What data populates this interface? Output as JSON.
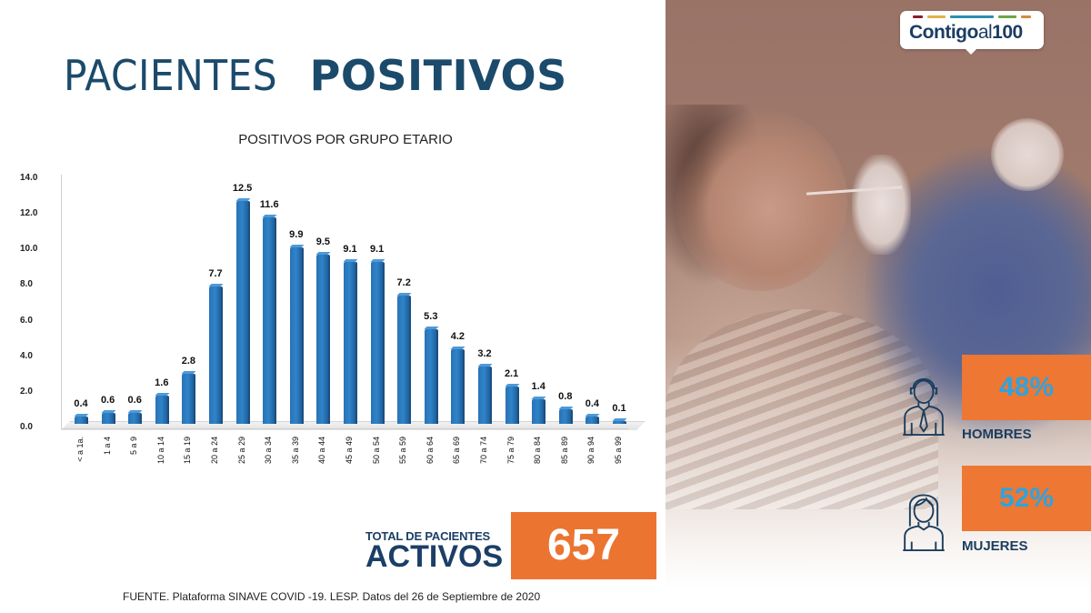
{
  "header": {
    "title_light": "PACIENTES",
    "title_bold": "POSITIVOS"
  },
  "chart_data": {
    "type": "bar",
    "title": "POSITIVOS POR GRUPO ETARIO",
    "xlabel": "",
    "ylabel": "",
    "ylim": [
      0,
      14
    ],
    "yticks": [
      "0.0",
      "2.0",
      "4.0",
      "6.0",
      "8.0",
      "10.0",
      "12.0",
      "14.0"
    ],
    "categories": [
      "< a 1a.",
      "1 a 4",
      "5 a 9",
      "10 a 14",
      "15 a 19",
      "20 a 24",
      "25 a 29",
      "30 a 34",
      "35 a 39",
      "40 a 44",
      "45 a 49",
      "50 a 54",
      "55 a 59",
      "60 a 64",
      "65 a 69",
      "70 a 74",
      "75 a 79",
      "80 a 84",
      "85 a 89",
      "90 a 94",
      "95 a 99"
    ],
    "values": [
      0.4,
      0.6,
      0.6,
      1.6,
      2.8,
      7.7,
      12.5,
      11.6,
      9.9,
      9.5,
      9.1,
      9.1,
      7.2,
      5.3,
      4.2,
      3.2,
      2.1,
      1.4,
      0.8,
      0.4,
      0.1
    ],
    "value_labels": [
      "0.4",
      "0.6",
      "0.6",
      "1.6",
      "2.8",
      "7.7",
      "12.5",
      "11.6",
      "9.9",
      "9.5",
      "9.1",
      "9.1",
      "7.2",
      "5.3",
      "4.2",
      "3.2",
      "2.1",
      "1.4",
      "0.8",
      "0.4",
      "0.1"
    ],
    "grid": false,
    "legend": null,
    "bar_color": "#2a78bf"
  },
  "total": {
    "label_small": "TOTAL DE PACIENTES",
    "label_big": "ACTIVOS",
    "value": "657",
    "box_color": "#ec7431"
  },
  "source": "FUENTE. Plataforma SINAVE COVID -19. LESP. Datos del 26 de Septiembre de 2020",
  "logo": {
    "text_bold": "Contigo",
    "text_light": "al",
    "text_number": "100",
    "stripe_colors": [
      "#8b1d2c",
      "#e0b24a",
      "#2c8fb0",
      "#6ea545",
      "#d58b3c"
    ]
  },
  "gender": {
    "men": {
      "percent": "48%",
      "label": "HOMBRES",
      "icon": "man-with-tie-icon"
    },
    "women": {
      "percent": "52%",
      "label": "MUJERES",
      "icon": "woman-icon"
    }
  },
  "colors": {
    "navy": "#1b4a6b",
    "orange": "#ed7733",
    "percent_blue": "#2fa3dd"
  }
}
